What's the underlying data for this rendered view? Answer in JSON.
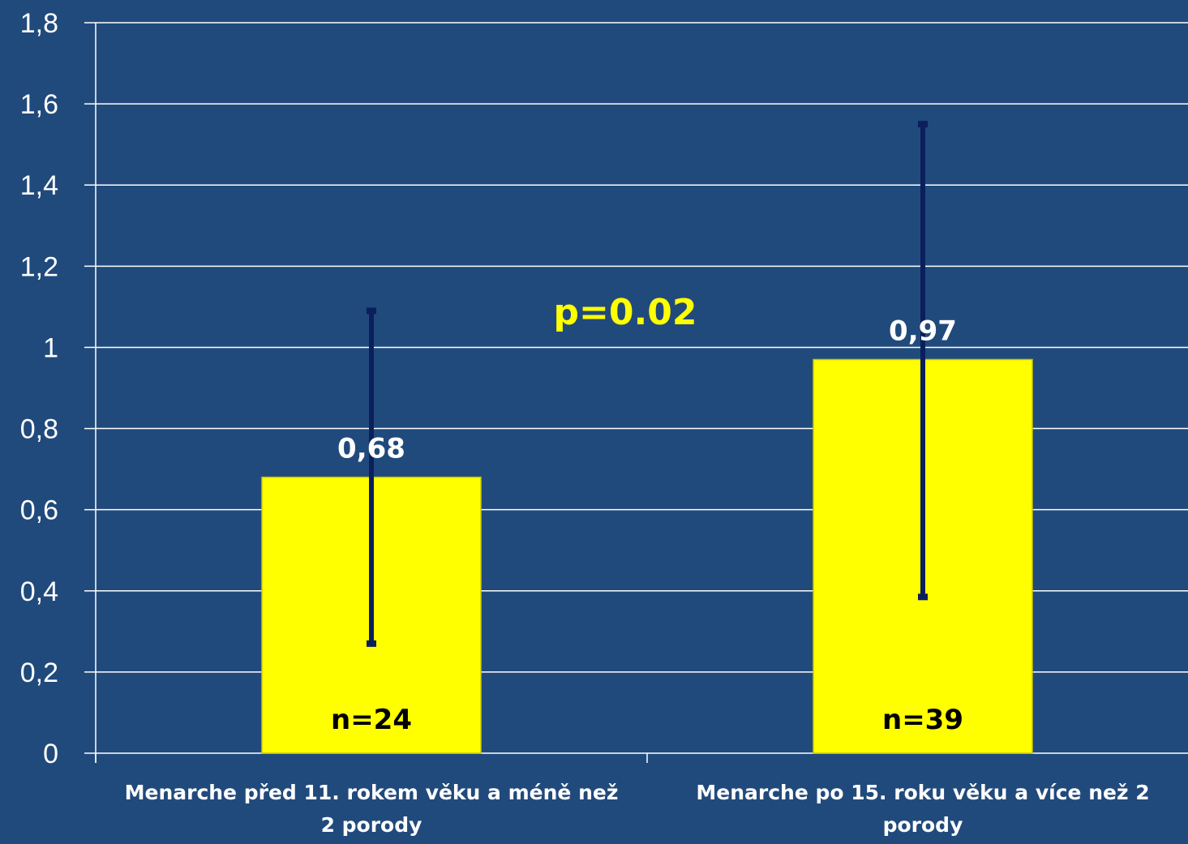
{
  "chart_data": {
    "type": "bar",
    "title": "",
    "xlabel": "",
    "ylabel": "",
    "ylim": [
      0,
      1.8
    ],
    "yticks": [
      "0",
      "0,2",
      "0,4",
      "0,6",
      "0,8",
      "1",
      "1,2",
      "1,4",
      "1,6",
      "1,8"
    ],
    "grid": true,
    "categories": [
      [
        "Menarche před 11. rokem věku a méně než",
        "2 porody"
      ],
      [
        "Menarche po 15. roku věku a více než 2",
        "porody"
      ]
    ],
    "values": [
      0.68,
      0.97
    ],
    "value_labels": [
      "0,68",
      "0,97"
    ],
    "error_low": [
      0.27,
      0.385
    ],
    "error_high": [
      1.09,
      1.55
    ],
    "sample_labels": [
      "n=24",
      "n=39"
    ],
    "annotations": [
      {
        "text": "p=0.02",
        "color": "#ffff00"
      }
    ]
  },
  "colors": {
    "background": "#214a7c",
    "bar": "#ffff00",
    "bar_edge": "#c8c800",
    "error_bar": "#0a1f5c",
    "grid": "#ffffff",
    "text": "#ffffff",
    "n_text": "#000000"
  }
}
